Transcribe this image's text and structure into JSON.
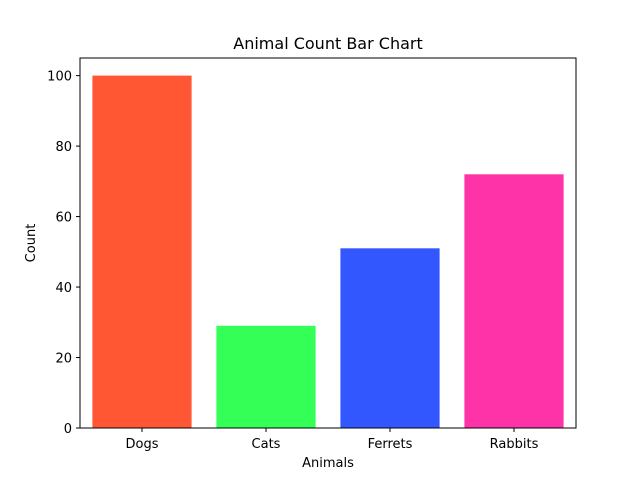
{
  "chart_data": {
    "type": "bar",
    "title": "Animal Count Bar Chart",
    "xlabel": "Animals",
    "ylabel": "Count",
    "categories": [
      "Dogs",
      "Cats",
      "Ferrets",
      "Rabbits"
    ],
    "values": [
      100,
      29,
      51,
      72
    ],
    "colors": [
      "#ff5733",
      "#33ff57",
      "#3357ff",
      "#ff33a8"
    ],
    "ylim": [
      0,
      105
    ],
    "yticks": [
      0,
      20,
      40,
      60,
      80,
      100
    ],
    "grid": false,
    "legend": "none"
  }
}
